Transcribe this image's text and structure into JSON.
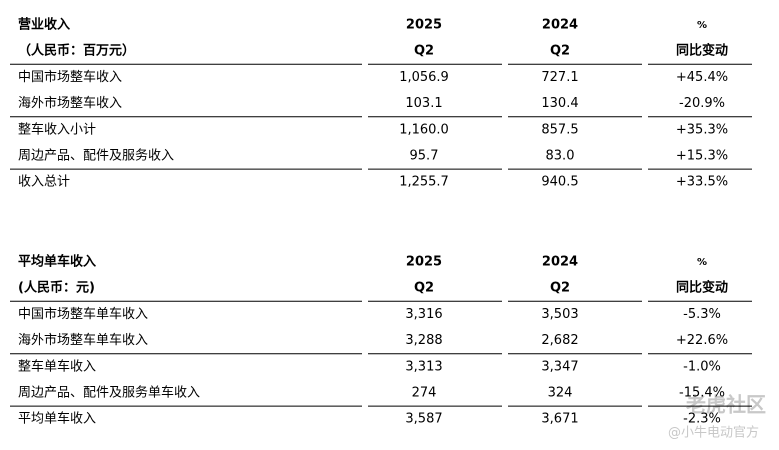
{
  "tables": [
    {
      "header": [
        [
          "营业收入",
          "2025",
          "2024",
          "%"
        ],
        [
          "（人民币：百万元）",
          "Q2",
          "Q2",
          "同比变动"
        ]
      ],
      "rows": [
        [
          "中国市场整车收入",
          "1,056.9",
          "727.1",
          "+45.4%"
        ],
        [
          "海外市场整车收入",
          "103.1",
          "130.4",
          "-20.9%"
        ],
        [
          "整车收入小计",
          "1,160.0",
          "857.5",
          "+35.3%"
        ],
        [
          "周边产品、配件及服务收入",
          "95.7",
          "83.0",
          "+15.3%"
        ],
        [
          "收入总计",
          "1,255.7",
          "940.5",
          "+33.5%"
        ]
      ]
    },
    {
      "header": [
        [
          "平均单车收入",
          "2025",
          "2024",
          "%"
        ],
        [
          "(人民币：元)",
          "Q2",
          "Q2",
          "同比变动"
        ]
      ],
      "rows": [
        [
          "中国市场整车单车收入",
          "3,316",
          "3,503",
          "-5.3%"
        ],
        [
          "海外市场整车单车收入",
          "3,288",
          "2,682",
          "+22.6%"
        ],
        [
          "整车单车收入",
          "3,313",
          "3,347",
          "-1.0%"
        ],
        [
          "周边产品、配件及服务单车收入",
          "274",
          "324",
          "-15.4%"
        ],
        [
          "平均单车收入",
          "3,587",
          "3,671",
          "-2.3%"
        ]
      ]
    }
  ],
  "watermark": {
    "brand": "老虎社区",
    "account": "@小牛电动官方"
  }
}
